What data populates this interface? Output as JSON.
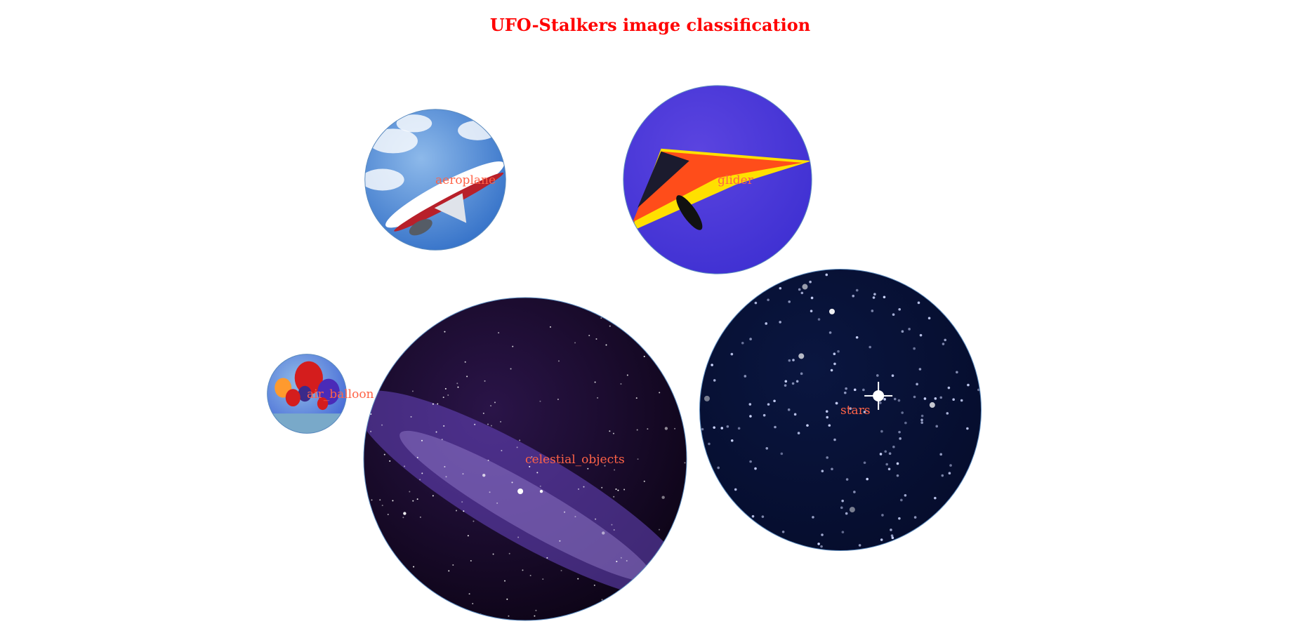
{
  "chart_data": {
    "type": "bubble",
    "title": "UFO-Stalkers image classification",
    "title_color": "#ff0000",
    "label_color": "#ff6347",
    "edge_color": "#5b8bbf",
    "items": [
      {
        "label": "aeroplane",
        "value": 0.19,
        "image": "airliner-taking-off",
        "colors": [
          "#2f6dc6",
          "#8db9ea",
          "#ffffff",
          "#b8202a"
        ]
      },
      {
        "label": "glider",
        "value": 0.34,
        "image": "hang-glider-on-violet-sky",
        "colors": [
          "#3d2fd1",
          "#5b44e0",
          "#ff4d1a",
          "#ffe000"
        ]
      },
      {
        "label": "air_balloon",
        "value": 0.06,
        "image": "hot-air-balloons-over-water",
        "colors": [
          "#3f62d6",
          "#92bde6",
          "#d41d1d",
          "#ff9a2e"
        ]
      },
      {
        "label": "celestial_objects",
        "value": 1.0,
        "image": "violet-milky-way",
        "colors": [
          "#0b0313",
          "#2a1448",
          "#6a47c2",
          "#b39be8"
        ]
      },
      {
        "label": "stars",
        "value": 0.76,
        "image": "star-field",
        "colors": [
          "#050c2b",
          "#0a1640",
          "#ffffff",
          "#cfd8ff"
        ]
      }
    ]
  }
}
